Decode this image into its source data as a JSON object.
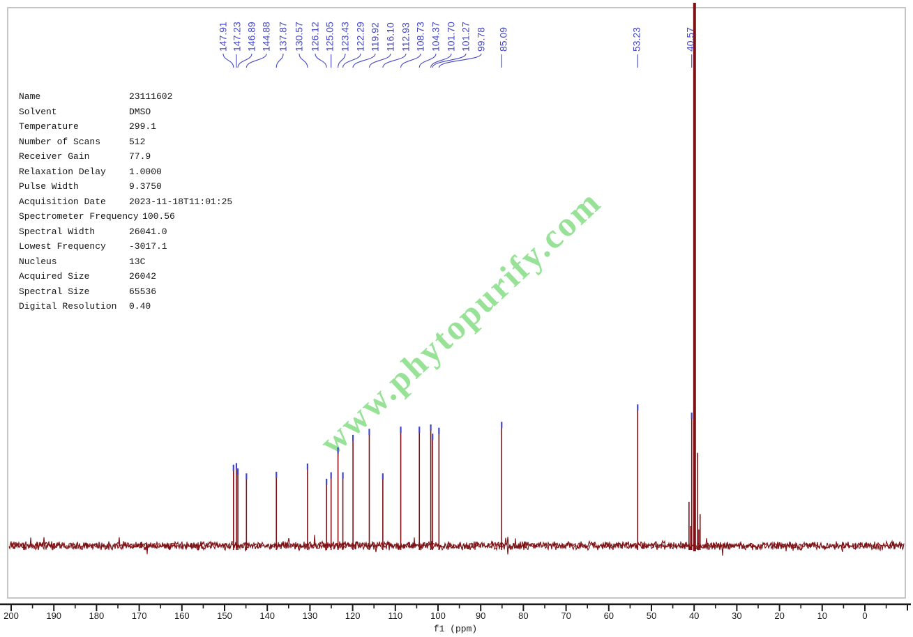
{
  "watermark": {
    "text": "www.phytopurify.com",
    "color": "#8fe08f"
  },
  "parameters": {
    "rows": [
      {
        "label": "Name",
        "value": "23111602"
      },
      {
        "label": "Solvent",
        "value": "DMSO"
      },
      {
        "label": "Temperature",
        "value": "299.1"
      },
      {
        "label": "Number of Scans",
        "value": "512"
      },
      {
        "label": "Receiver Gain",
        "value": "77.9"
      },
      {
        "label": "Relaxation Delay",
        "value": "1.0000"
      },
      {
        "label": "Pulse Width",
        "value": "9.3750"
      },
      {
        "label": "Acquisition Date",
        "value": "2023-11-18T11:01:25"
      },
      {
        "label": "Spectrometer Frequency",
        "value": "100.56"
      },
      {
        "label": "Spectral Width",
        "value": "26041.0"
      },
      {
        "label": "Lowest Frequency",
        "value": "-3017.1"
      },
      {
        "label": "Nucleus",
        "value": "13C"
      },
      {
        "label": "Acquired Size",
        "value": "26042"
      },
      {
        "label": "Spectral Size",
        "value": "65536"
      },
      {
        "label": "Digital Resolution",
        "value": "0.40"
      }
    ]
  },
  "chart_data": {
    "type": "line",
    "kind": "13C NMR spectrum",
    "xlabel": "f1 (ppm)",
    "x_axis": {
      "tick_labels": [
        "200",
        "190",
        "180",
        "170",
        "160",
        "150",
        "140",
        "130",
        "120",
        "110",
        "100",
        "90",
        "80",
        "70",
        "60",
        "50",
        "40",
        "30",
        "20",
        "10",
        "0"
      ],
      "major_tick_step": 10,
      "minor_tick_step": 5,
      "range": [
        202,
        -11
      ],
      "reversed": true
    },
    "peaks": [
      {
        "label": "147.91",
        "ppm": 147.91,
        "relative_intensity": 0.139
      },
      {
        "label": "147.23",
        "ppm": 147.23,
        "relative_intensity": 0.142
      },
      {
        "label": "146.89",
        "ppm": 146.89,
        "relative_intensity": 0.132
      },
      {
        "label": "144.88",
        "ppm": 144.88,
        "relative_intensity": 0.123
      },
      {
        "label": "137.87",
        "ppm": 137.87,
        "relative_intensity": 0.126
      },
      {
        "label": "130.57",
        "ppm": 130.57,
        "relative_intensity": 0.141
      },
      {
        "label": "126.12",
        "ppm": 126.12,
        "relative_intensity": 0.113
      },
      {
        "label": "125.05",
        "ppm": 125.05,
        "relative_intensity": 0.125
      },
      {
        "label": "123.43",
        "ppm": 123.43,
        "relative_intensity": 0.171
      },
      {
        "label": "122.29",
        "ppm": 122.29,
        "relative_intensity": 0.125
      },
      {
        "label": "119.92",
        "ppm": 119.92,
        "relative_intensity": 0.194
      },
      {
        "label": "116.10",
        "ppm": 116.1,
        "relative_intensity": 0.205
      },
      {
        "label": "112.93",
        "ppm": 112.93,
        "relative_intensity": 0.123
      },
      {
        "label": "108.73",
        "ppm": 108.73,
        "relative_intensity": 0.209
      },
      {
        "label": "104.37",
        "ppm": 104.37,
        "relative_intensity": 0.209
      },
      {
        "label": "101.70",
        "ppm": 101.7,
        "relative_intensity": 0.213
      },
      {
        "label": "101.27",
        "ppm": 101.27,
        "relative_intensity": 0.196
      },
      {
        "label": "99.78",
        "ppm": 99.78,
        "relative_intensity": 0.207
      },
      {
        "label": "85.09",
        "ppm": 85.09,
        "relative_intensity": 0.218
      },
      {
        "label": "53.23",
        "ppm": 53.23,
        "relative_intensity": 0.25
      },
      {
        "label": "40.57",
        "ppm": 40.57,
        "relative_intensity": 0.235
      }
    ],
    "solvent_cluster": {
      "main_ppm": 39.9,
      "main_relative_intensity": 1.0,
      "satellites": [
        {
          "ppm": 41.2,
          "relative_intensity": 0.081
        },
        {
          "ppm": 40.8,
          "relative_intensity": 0.036
        },
        {
          "ppm": 39.2,
          "relative_intensity": 0.171
        },
        {
          "ppm": 38.9,
          "relative_intensity": 0.03
        },
        {
          "ppm": 38.6,
          "relative_intensity": 0.058
        }
      ]
    },
    "colors": {
      "trace": "#7d1115",
      "peak_labels": "#4245c6",
      "axis": "#1a1a1a",
      "frame": "#c6c6c6"
    }
  }
}
